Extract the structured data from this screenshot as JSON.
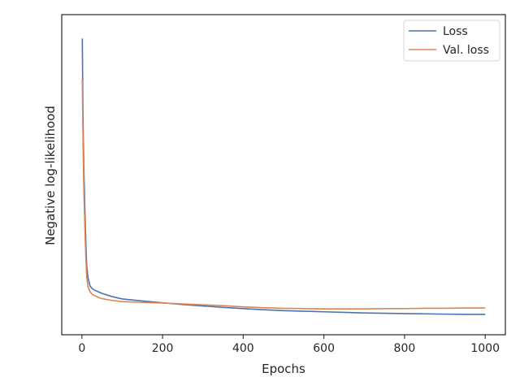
{
  "chart_data": {
    "type": "line",
    "title": "",
    "xlabel": "Epochs",
    "ylabel": "Negative log-likelihood",
    "xlim": [
      -50,
      1050
    ],
    "ylim": [
      0,
      1
    ],
    "xticks": [
      0,
      200,
      400,
      600,
      800,
      1000
    ],
    "yticks_shown": false,
    "grid": false,
    "legend_position": "top-right",
    "series": [
      {
        "name": "Loss",
        "color": "#4c72b0",
        "x": [
          1,
          2,
          3,
          5,
          8,
          10,
          12,
          15,
          20,
          25,
          30,
          40,
          50,
          75,
          100,
          150,
          200,
          250,
          300,
          350,
          400,
          450,
          500,
          550,
          600,
          650,
          700,
          750,
          800,
          850,
          900,
          950,
          1000
        ],
        "y": [
          0.96,
          0.8,
          0.66,
          0.5,
          0.34,
          0.25,
          0.18,
          0.14,
          0.112,
          0.103,
          0.098,
          0.092,
          0.086,
          0.075,
          0.067,
          0.06,
          0.054,
          0.048,
          0.043,
          0.038,
          0.034,
          0.03,
          0.027,
          0.025,
          0.023,
          0.021,
          0.019,
          0.018,
          0.017,
          0.016,
          0.015,
          0.014,
          0.014
        ]
      },
      {
        "name": "Val. loss",
        "color": "#dd8452",
        "x": [
          1,
          2,
          3,
          5,
          8,
          10,
          12,
          15,
          20,
          25,
          30,
          40,
          50,
          75,
          100,
          150,
          200,
          250,
          300,
          350,
          400,
          450,
          500,
          550,
          600,
          650,
          700,
          750,
          800,
          850,
          900,
          950,
          1000
        ],
        "y": [
          0.82,
          0.7,
          0.58,
          0.43,
          0.28,
          0.2,
          0.14,
          0.11,
          0.092,
          0.084,
          0.079,
          0.073,
          0.068,
          0.062,
          0.058,
          0.055,
          0.053,
          0.05,
          0.047,
          0.044,
          0.04,
          0.037,
          0.035,
          0.034,
          0.033,
          0.033,
          0.033,
          0.034,
          0.034,
          0.035,
          0.035,
          0.036,
          0.036
        ]
      }
    ]
  }
}
